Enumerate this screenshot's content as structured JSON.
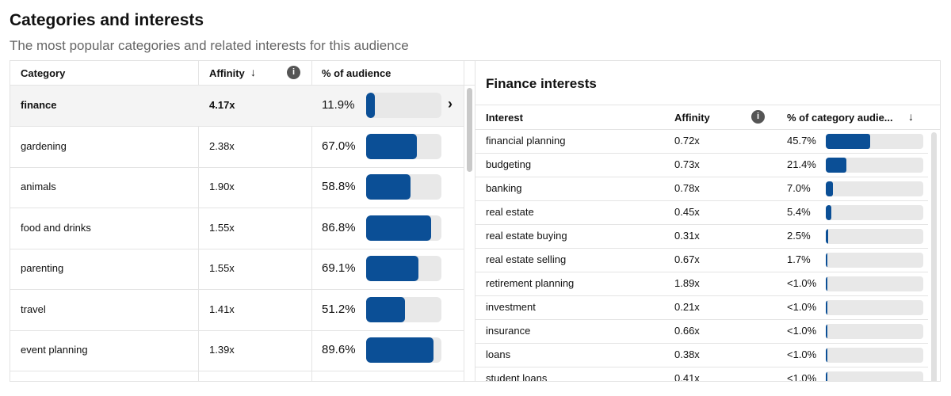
{
  "header": {
    "title": "Categories and interests",
    "subtitle": "The most popular categories and related interests for this audience"
  },
  "categories_table": {
    "columns": [
      "Category",
      "Affinity",
      "% of audience"
    ],
    "rows": [
      {
        "category": "finance",
        "affinity": "4.17x",
        "audience": "11.9%",
        "audience_value": 11.9
      },
      {
        "category": "gardening",
        "affinity": "2.38x",
        "audience": "67.0%",
        "audience_value": 67.0
      },
      {
        "category": "animals",
        "affinity": "1.90x",
        "audience": "58.8%",
        "audience_value": 58.8
      },
      {
        "category": "food and drinks",
        "affinity": "1.55x",
        "audience": "86.8%",
        "audience_value": 86.8
      },
      {
        "category": "parenting",
        "affinity": "1.55x",
        "audience": "69.1%",
        "audience_value": 69.1
      },
      {
        "category": "travel",
        "affinity": "1.41x",
        "audience": "51.2%",
        "audience_value": 51.2
      },
      {
        "category": "event planning",
        "affinity": "1.39x",
        "audience": "89.6%",
        "audience_value": 89.6
      }
    ]
  },
  "interests_panel": {
    "title": "Finance interests",
    "columns": [
      "Interest",
      "Affinity",
      "% of category audie..."
    ],
    "rows": [
      {
        "interest": "financial planning",
        "affinity": "0.72x",
        "share": "45.7%",
        "share_value": 45.7
      },
      {
        "interest": "budgeting",
        "affinity": "0.73x",
        "share": "21.4%",
        "share_value": 21.4
      },
      {
        "interest": "banking",
        "affinity": "0.78x",
        "share": "7.0%",
        "share_value": 7.0
      },
      {
        "interest": "real estate",
        "affinity": "0.45x",
        "share": "5.4%",
        "share_value": 5.4
      },
      {
        "interest": "real estate buying",
        "affinity": "0.31x",
        "share": "2.5%",
        "share_value": 2.5
      },
      {
        "interest": "real estate selling",
        "affinity": "0.67x",
        "share": "1.7%",
        "share_value": 1.7
      },
      {
        "interest": "retirement planning",
        "affinity": "1.89x",
        "share": "<1.0%",
        "share_value": 0.5
      },
      {
        "interest": "investment",
        "affinity": "0.21x",
        "share": "<1.0%",
        "share_value": 0.5
      },
      {
        "interest": "insurance",
        "affinity": "0.66x",
        "share": "<1.0%",
        "share_value": 0.5
      },
      {
        "interest": "loans",
        "affinity": "0.38x",
        "share": "<1.0%",
        "share_value": 0.5
      },
      {
        "interest": "student loans",
        "affinity": "0.41x",
        "share": "<1.0%",
        "share_value": 0.5
      }
    ]
  }
}
